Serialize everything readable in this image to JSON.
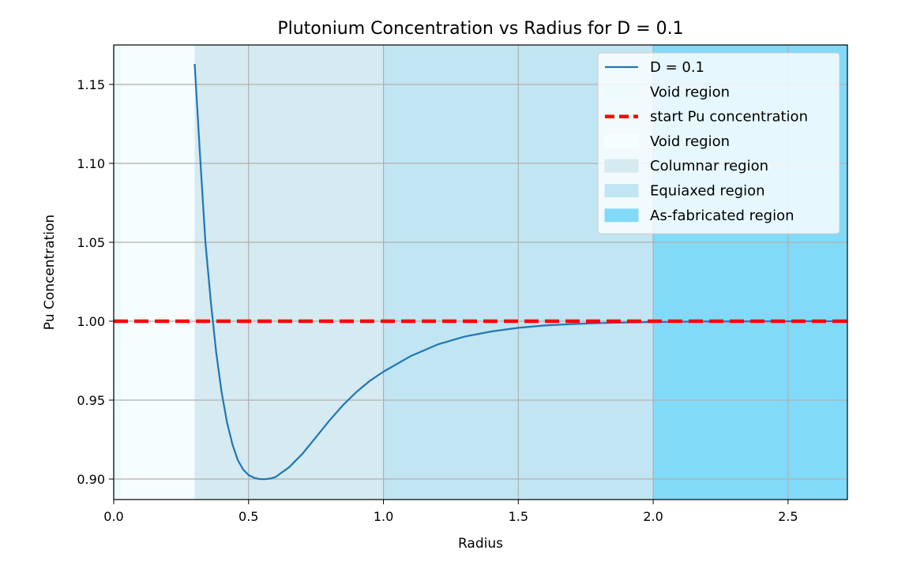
{
  "chart_data": {
    "type": "line",
    "title": "Plutonium Concentration vs Radius for D = 0.1",
    "xlabel": "Radius",
    "ylabel": "Pu Concentration",
    "xlim": [
      0.0,
      2.72
    ],
    "ylim": [
      0.887,
      1.175
    ],
    "xticks": [
      0.0,
      0.5,
      1.0,
      1.5,
      2.0,
      2.5
    ],
    "xtick_labels": [
      "0.0",
      "0.5",
      "1.0",
      "1.5",
      "2.0",
      "2.5"
    ],
    "yticks": [
      0.9,
      0.95,
      1.0,
      1.05,
      1.1,
      1.15
    ],
    "ytick_labels": [
      "0.90",
      "0.95",
      "1.00",
      "1.05",
      "1.10",
      "1.15"
    ],
    "grid": true,
    "legend_position": "upper right",
    "regions": [
      {
        "name": "Void region",
        "x_start": 0.0,
        "x_end": 0.3,
        "color": "#eefbfd"
      },
      {
        "name": "Void region",
        "x_start": 0.03,
        "x_end": 0.3,
        "color": "#f5fdff"
      },
      {
        "name": "Columnar region",
        "x_start": 0.3,
        "x_end": 1.0,
        "color": "#d5eaf1"
      },
      {
        "name": "Equiaxed region",
        "x_start": 1.0,
        "x_end": 2.0,
        "color": "#c1e5f3"
      },
      {
        "name": "As-fabricated region",
        "x_start": 2.0,
        "x_end": 2.72,
        "color": "#82daf9"
      }
    ],
    "series": [
      {
        "name": "D = 0.1",
        "color": "#1f77b4",
        "x": [
          0.3,
          0.32,
          0.34,
          0.36,
          0.38,
          0.4,
          0.42,
          0.44,
          0.46,
          0.48,
          0.5,
          0.52,
          0.54,
          0.56,
          0.58,
          0.6,
          0.65,
          0.7,
          0.75,
          0.8,
          0.85,
          0.9,
          0.95,
          1.0,
          1.1,
          1.2,
          1.3,
          1.4,
          1.5,
          1.6,
          1.7,
          1.8,
          1.9,
          2.0,
          2.2,
          2.4,
          2.6,
          2.72
        ],
        "y": [
          1.163,
          1.105,
          1.05,
          1.012,
          0.98,
          0.955,
          0.936,
          0.922,
          0.912,
          0.906,
          0.9025,
          0.9008,
          0.9,
          0.8999,
          0.9003,
          0.9013,
          0.9074,
          0.9161,
          0.9266,
          0.9371,
          0.9468,
          0.9552,
          0.9623,
          0.968,
          0.9778,
          0.9852,
          0.9902,
          0.9935,
          0.9958,
          0.9973,
          0.9982,
          0.9988,
          0.9992,
          0.9995,
          0.9998,
          0.9999,
          1.0,
          1.0
        ]
      },
      {
        "name": "start Pu concentration",
        "color": "#ff0000",
        "style": "dashed",
        "x": [
          0.0,
          2.72
        ],
        "y": [
          1.0,
          1.0
        ]
      }
    ],
    "legend": [
      {
        "label": "D = 0.1",
        "kind": "line",
        "color": "#1f77b4"
      },
      {
        "label": "Void region",
        "kind": "patch",
        "color": "#eefbfd"
      },
      {
        "label": "start Pu concentration",
        "kind": "dashed",
        "color": "#ff0000"
      },
      {
        "label": "Void region",
        "kind": "patch",
        "color": "#f5fdff"
      },
      {
        "label": "Columnar region",
        "kind": "patch",
        "color": "#d5eaf1"
      },
      {
        "label": "Equiaxed region",
        "kind": "patch",
        "color": "#c1e5f3"
      },
      {
        "label": "As-fabricated region",
        "kind": "patch",
        "color": "#82daf9"
      }
    ]
  }
}
